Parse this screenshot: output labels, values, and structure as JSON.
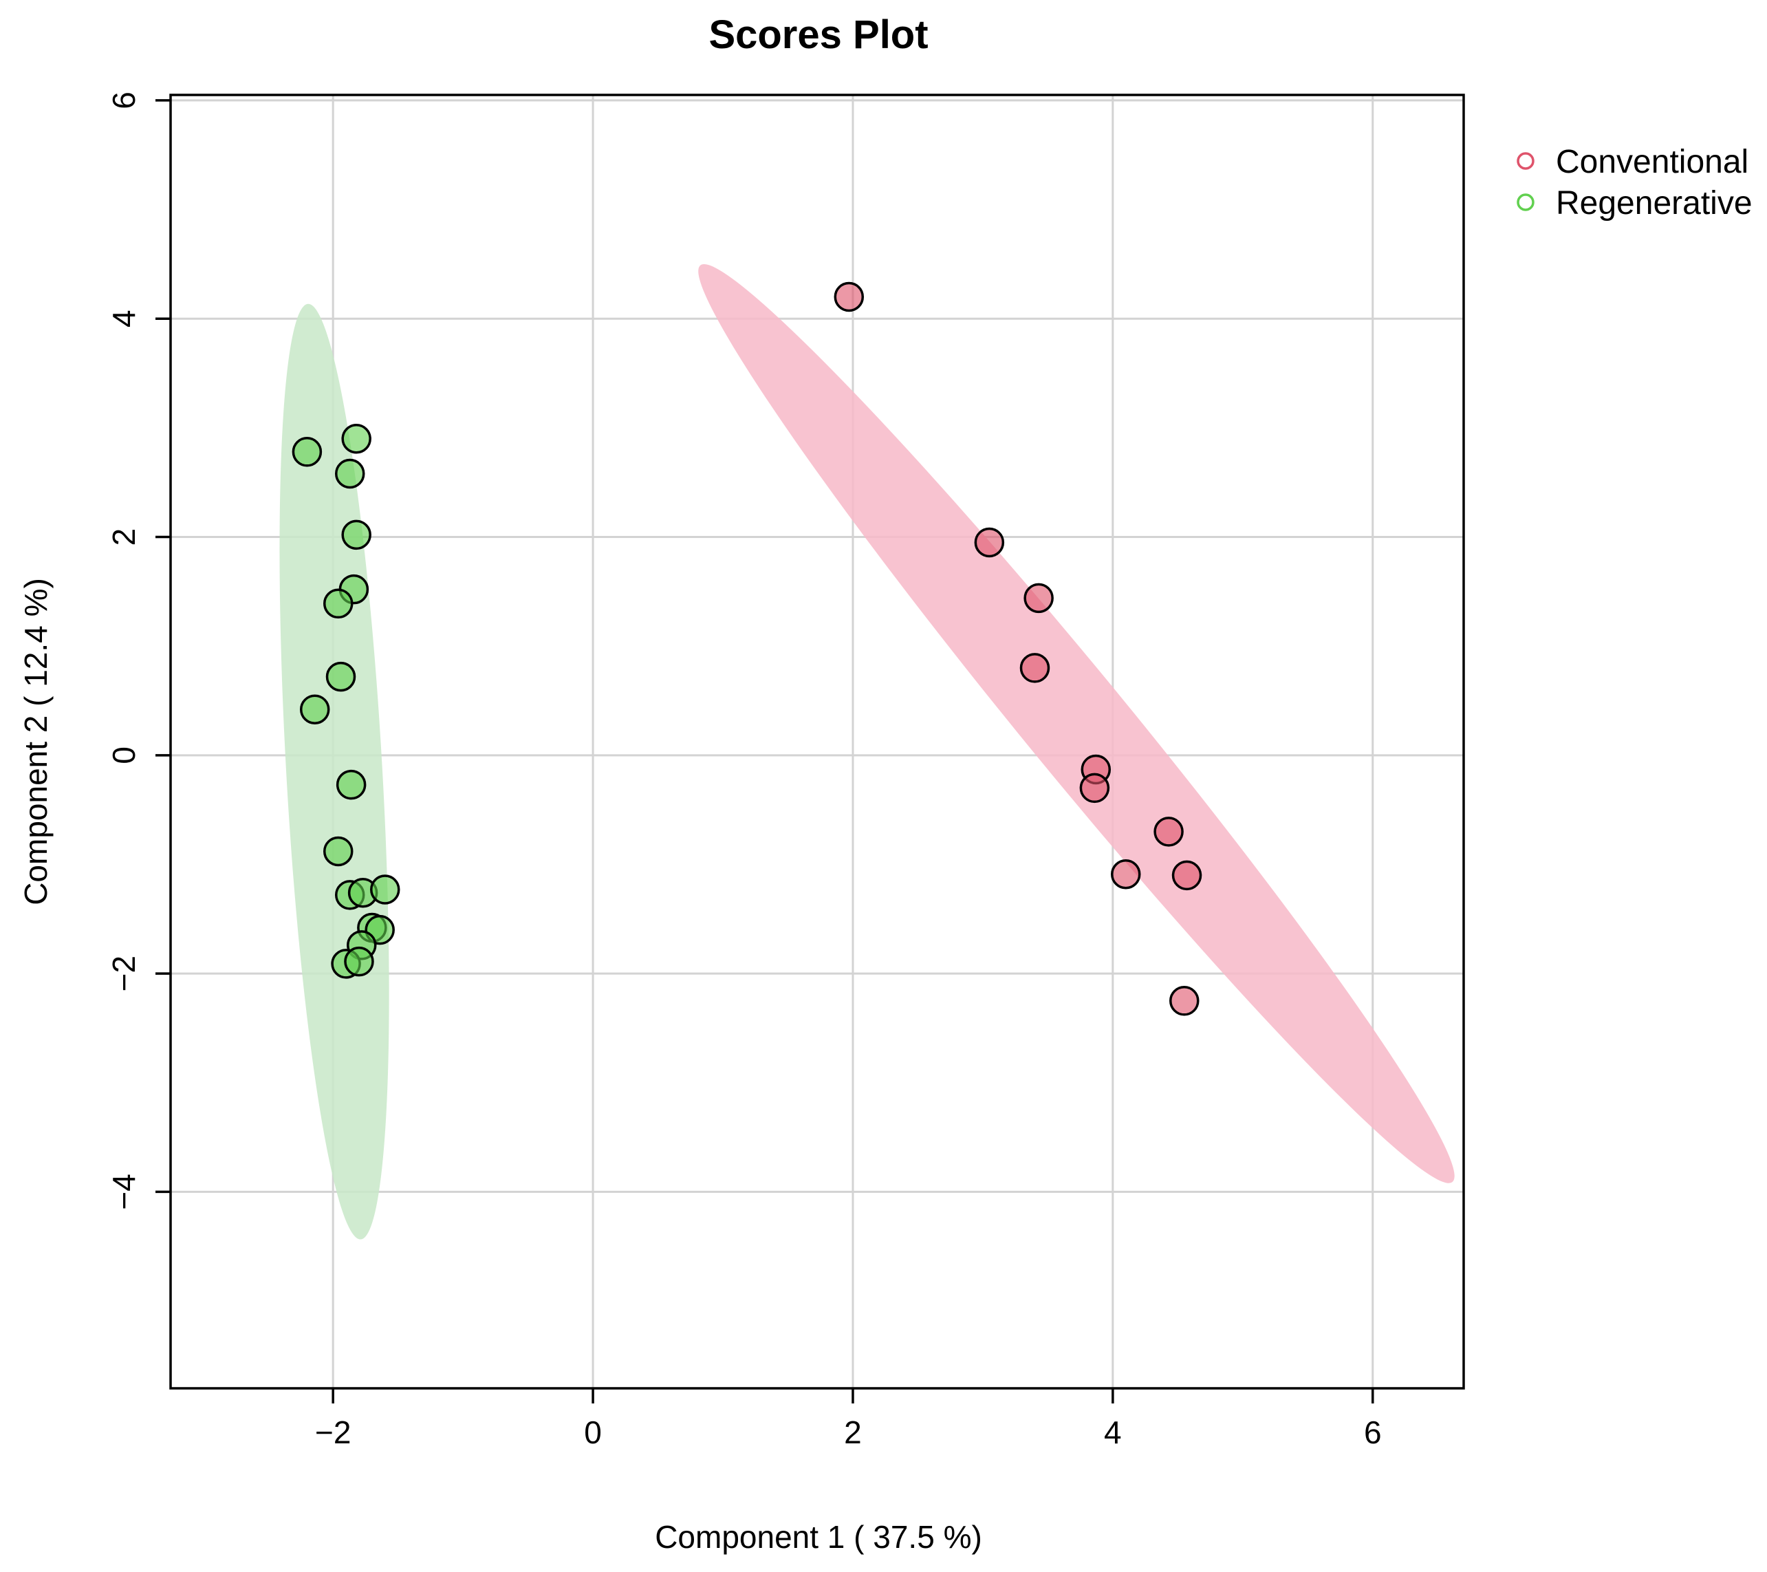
{
  "chart_data": {
    "type": "scatter",
    "title": "Scores Plot",
    "xlabel": "Component 1 ( 37.5 %)",
    "ylabel": "Component 2 ( 12.4 %)",
    "xlim": [
      -3.25,
      6.7
    ],
    "ylim": [
      -5.8,
      6.05
    ],
    "x_ticks": [
      -2,
      0,
      2,
      4,
      6
    ],
    "x_tick_labels": [
      "−2",
      "0",
      "2",
      "4",
      "6"
    ],
    "y_ticks": [
      -4,
      -2,
      0,
      2,
      4,
      6
    ],
    "y_tick_labels": [
      "−4",
      "−2",
      "0",
      "2",
      "4",
      "6"
    ],
    "grid": true,
    "legend_position": "top-right, outside plot",
    "series": [
      {
        "name": "Conventional",
        "color": "#DF536B",
        "ellipse_color": "#F7B8C8",
        "points": [
          {
            "x": 1.97,
            "y": 4.2
          },
          {
            "x": 3.05,
            "y": 1.95
          },
          {
            "x": 3.43,
            "y": 1.44
          },
          {
            "x": 3.4,
            "y": 0.8
          },
          {
            "x": 3.87,
            "y": -0.13
          },
          {
            "x": 3.86,
            "y": -0.3
          },
          {
            "x": 4.43,
            "y": -0.7
          },
          {
            "x": 4.1,
            "y": -1.09
          },
          {
            "x": 4.57,
            "y": -1.1
          },
          {
            "x": 4.55,
            "y": -2.25
          }
        ],
        "ellipse": {
          "cx": 3.72,
          "cy": 0.29,
          "semi_major": 5.1,
          "semi_minor": 0.42,
          "angle_deg": -55.5
        }
      },
      {
        "name": "Regenerative",
        "color": "#61D04F",
        "ellipse_color": "#C8E8C8",
        "points": [
          {
            "x": -2.2,
            "y": 2.78
          },
          {
            "x": -1.82,
            "y": 2.9
          },
          {
            "x": -1.87,
            "y": 2.58
          },
          {
            "x": -1.82,
            "y": 2.02
          },
          {
            "x": -1.84,
            "y": 1.52
          },
          {
            "x": -1.96,
            "y": 1.39
          },
          {
            "x": -1.94,
            "y": 0.72
          },
          {
            "x": -2.14,
            "y": 0.42
          },
          {
            "x": -1.86,
            "y": -0.27
          },
          {
            "x": -1.96,
            "y": -0.88
          },
          {
            "x": -1.87,
            "y": -1.28
          },
          {
            "x": -1.77,
            "y": -1.26
          },
          {
            "x": -1.6,
            "y": -1.23
          },
          {
            "x": -1.7,
            "y": -1.58
          },
          {
            "x": -1.64,
            "y": -1.6
          },
          {
            "x": -1.78,
            "y": -1.74
          },
          {
            "x": -1.9,
            "y": -1.91
          },
          {
            "x": -1.8,
            "y": -1.89
          }
        ],
        "ellipse": {
          "cx": -1.99,
          "cy": -0.15,
          "semi_major": 4.29,
          "semi_minor": 0.37,
          "angle_deg": -87.3
        }
      }
    ]
  }
}
